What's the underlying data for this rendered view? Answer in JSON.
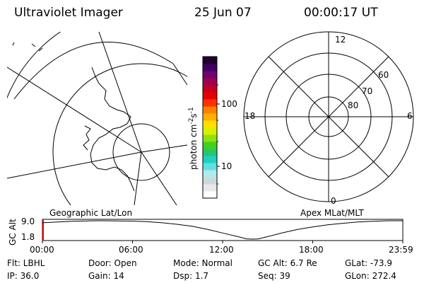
{
  "header": {
    "instrument": "Ultraviolet Imager",
    "date": "25 Jun 07",
    "time": "00:00:17 UT"
  },
  "colorbar": {
    "label_text": "photon cm",
    "label_exp1": "-2",
    "label_s": "s",
    "label_exp2": "-1",
    "tick_100": "100",
    "tick_10": "10",
    "colors": [
      "#ffffff",
      "#e8e8e8",
      "#cfd8d8",
      "#b0eaea",
      "#60e0e0",
      "#20d0c0",
      "#20c870",
      "#40d020",
      "#90e010",
      "#d8f000",
      "#ffe000",
      "#ffb000",
      "#ff8000",
      "#ff3000",
      "#e80000",
      "#c00020",
      "#a00050",
      "#700070",
      "#400060",
      "#200030"
    ]
  },
  "polar": {
    "label_12": "12",
    "label_18": "18",
    "label_6": "6",
    "label_0": "0",
    "label_60": "60",
    "label_70": "70",
    "label_80": "80"
  },
  "map": {
    "caption": "Geographic Lat/Lon"
  },
  "apex_caption": "Apex MLat/MLT",
  "altitude_plot": {
    "axis_label": "GC Alt",
    "y_top": "9.0",
    "y_bottom": "1.8",
    "x_ticks": [
      "00:00",
      "06:00",
      "12:00",
      "18:00",
      "23:59"
    ],
    "curve": [
      [
        0,
        8.2
      ],
      [
        1,
        8.5
      ],
      [
        2,
        8.8
      ],
      [
        3,
        8.95
      ],
      [
        4,
        9.0
      ],
      [
        5,
        8.95
      ],
      [
        6,
        8.85
      ],
      [
        7,
        8.6
      ],
      [
        8,
        8.2
      ],
      [
        9,
        7.6
      ],
      [
        10,
        6.8
      ],
      [
        11,
        5.6
      ],
      [
        12,
        4.2
      ],
      [
        13,
        2.8
      ],
      [
        13.6,
        1.9
      ],
      [
        14,
        1.8
      ],
      [
        14.4,
        1.9
      ],
      [
        15,
        2.8
      ],
      [
        16,
        4.3
      ],
      [
        17,
        5.6
      ],
      [
        18,
        6.6
      ],
      [
        19,
        7.4
      ],
      [
        20,
        8.0
      ],
      [
        21,
        8.5
      ],
      [
        22,
        8.8
      ],
      [
        23,
        9.0
      ],
      [
        24,
        9.0
      ]
    ]
  },
  "info": {
    "filter": "Flt: LBHL",
    "ip": "IP: 36.0",
    "door": "Door: Open",
    "gain": "Gain: 14",
    "mode": "Mode: Normal",
    "dsp": "Dsp:    1.7",
    "gc_alt": "GC Alt: 6.7 Re",
    "seq": "Seq: 39",
    "glat": "GLat: -73.9",
    "glon": "GLon: 272.4"
  }
}
